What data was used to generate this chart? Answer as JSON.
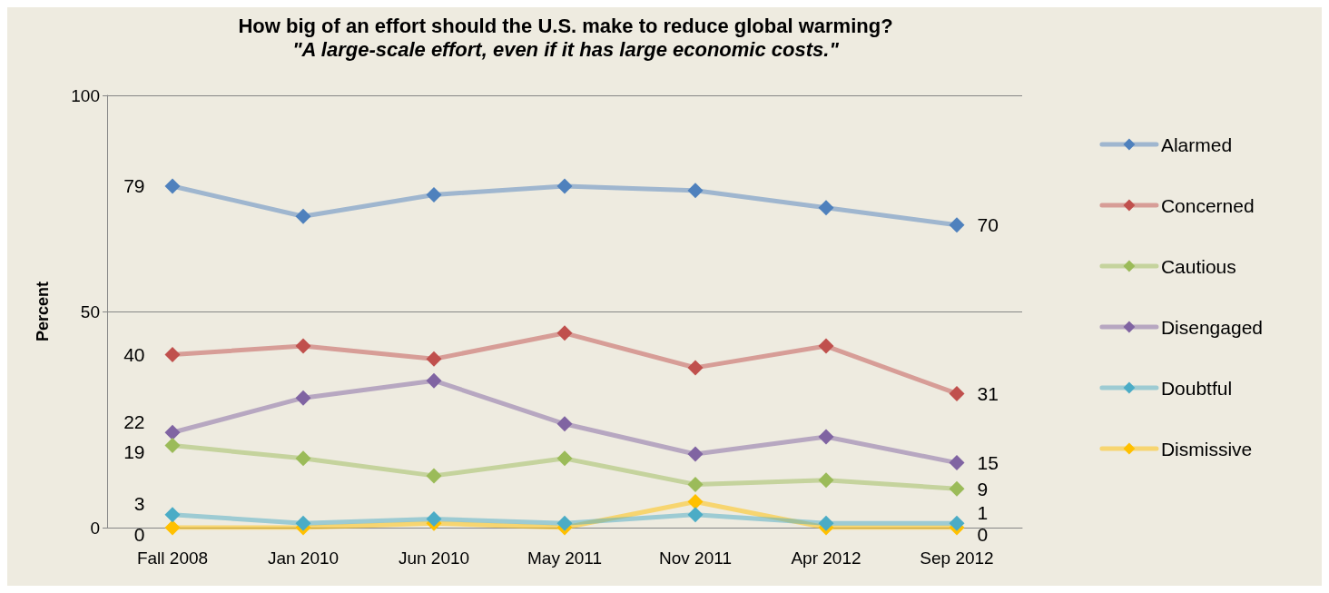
{
  "chart_data": {
    "type": "line",
    "title": "How big of an effort should the U.S. make to reduce global warming?",
    "subtitle": "\"A large-scale effort, even if it has large economic costs.\"",
    "ylabel": "Percent",
    "categories": [
      "Fall 2008",
      "Jan 2010",
      "Jun 2010",
      "May 2011",
      "Nov 2011",
      "Apr 2012",
      "Sep 2012"
    ],
    "ylim": [
      0,
      100
    ],
    "yticks": [
      0,
      50,
      100
    ],
    "grid": "y",
    "legend": "right",
    "marker": "diamond",
    "line_style": "solid",
    "series": [
      {
        "name": "Alarmed",
        "color": "#4f81bd",
        "values": [
          79,
          72,
          77,
          79,
          78,
          74,
          70
        ],
        "value_labels": [
          "79",
          null,
          null,
          null,
          null,
          null,
          "70"
        ]
      },
      {
        "name": "Concerned",
        "color": "#c0504d",
        "values": [
          40,
          42,
          39,
          45,
          37,
          42,
          31
        ],
        "value_labels": [
          "40",
          null,
          null,
          null,
          null,
          null,
          "31"
        ]
      },
      {
        "name": "Cautious",
        "color": "#9bbb59",
        "values": [
          19,
          16,
          12,
          16,
          10,
          11,
          9
        ],
        "value_labels": [
          "19",
          null,
          null,
          null,
          null,
          null,
          "9"
        ]
      },
      {
        "name": "Disengaged",
        "color": "#8064a2",
        "values": [
          22,
          30,
          34,
          24,
          17,
          21,
          15
        ],
        "value_labels": [
          "22",
          null,
          null,
          null,
          null,
          null,
          "15"
        ]
      },
      {
        "name": "Doubtful",
        "color": "#4bacc6",
        "values": [
          3,
          1,
          2,
          1,
          3,
          1,
          1
        ],
        "value_labels": [
          "3",
          null,
          null,
          null,
          null,
          null,
          "1"
        ]
      },
      {
        "name": "Dismissive",
        "color": "#ffc000",
        "values": [
          0,
          0,
          1,
          0,
          6,
          0,
          0
        ],
        "value_labels": [
          "0",
          null,
          null,
          null,
          null,
          null,
          "0"
        ]
      }
    ]
  }
}
